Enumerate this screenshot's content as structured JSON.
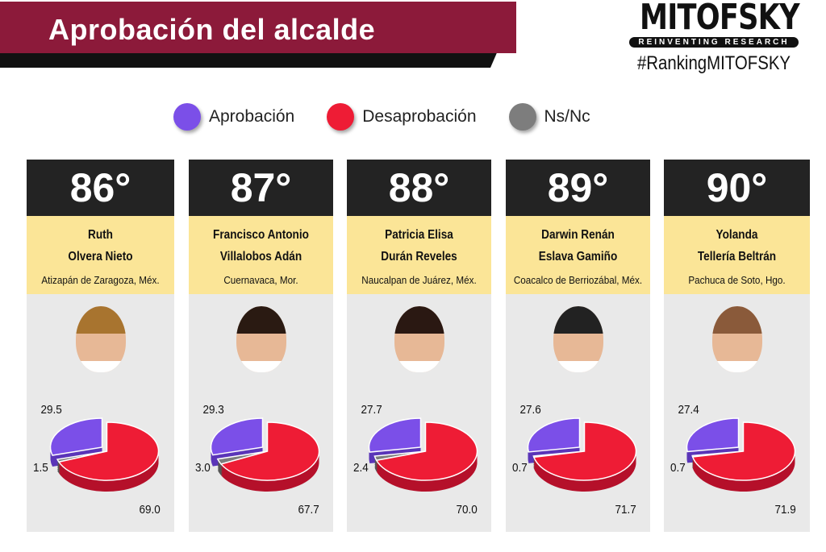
{
  "header": {
    "title": "Aprobación del alcalde",
    "brand": "MITOFSKY",
    "tagline": "REINVENTING RESEARCH",
    "hashtag": "#RankingMITOFSKY"
  },
  "colors": {
    "approval": "#7b4fe8",
    "disapproval": "#ee1c35",
    "nsnc": "#7d7d7d"
  },
  "chart_data": {
    "type": "pie",
    "title": "Aprobación del alcalde",
    "legend": [
      "Aprobación",
      "Desaprobación",
      "Ns/Nc"
    ],
    "legend_placement": "top",
    "series": [
      {
        "rank": "86°",
        "name_line1": "Ruth",
        "name_line2": "Olvera Nieto",
        "city": "Atizapán de Zaragoza, Méx.",
        "approval": 29.5,
        "disapproval": 69.0,
        "nsnc": 1.5,
        "labels": [
          "29.5",
          "69.0",
          "1.5"
        ]
      },
      {
        "rank": "87°",
        "name_line1": "Francisco Antonio",
        "name_line2": "Villalobos Adán",
        "city": "Cuernavaca, Mor.",
        "approval": 29.3,
        "disapproval": 67.7,
        "nsnc": 3.0,
        "labels": [
          "29.3",
          "67.7",
          "3.0"
        ]
      },
      {
        "rank": "88°",
        "name_line1": "Patricia Elisa",
        "name_line2": "Durán Reveles",
        "city": "Naucalpan de Juárez, Méx.",
        "approval": 27.7,
        "disapproval": 70.0,
        "nsnc": 2.4,
        "labels": [
          "27.7",
          "70.0",
          "2.4"
        ]
      },
      {
        "rank": "89°",
        "name_line1": "Darwin Renán",
        "name_line2": "Eslava Gamiño",
        "city": "Coacalco de Berriozábal,  Méx.",
        "approval": 27.6,
        "disapproval": 71.7,
        "nsnc": 0.7,
        "labels": [
          "27.6",
          "71.7",
          "0.7"
        ]
      },
      {
        "rank": "90°",
        "name_line1": "Yolanda",
        "name_line2": "Tellería Beltrán",
        "city": "Pachuca de Soto, Hgo.",
        "approval": 27.4,
        "disapproval": 71.9,
        "nsnc": 0.7,
        "labels": [
          "27.4",
          "71.9",
          "0.7"
        ]
      }
    ]
  }
}
